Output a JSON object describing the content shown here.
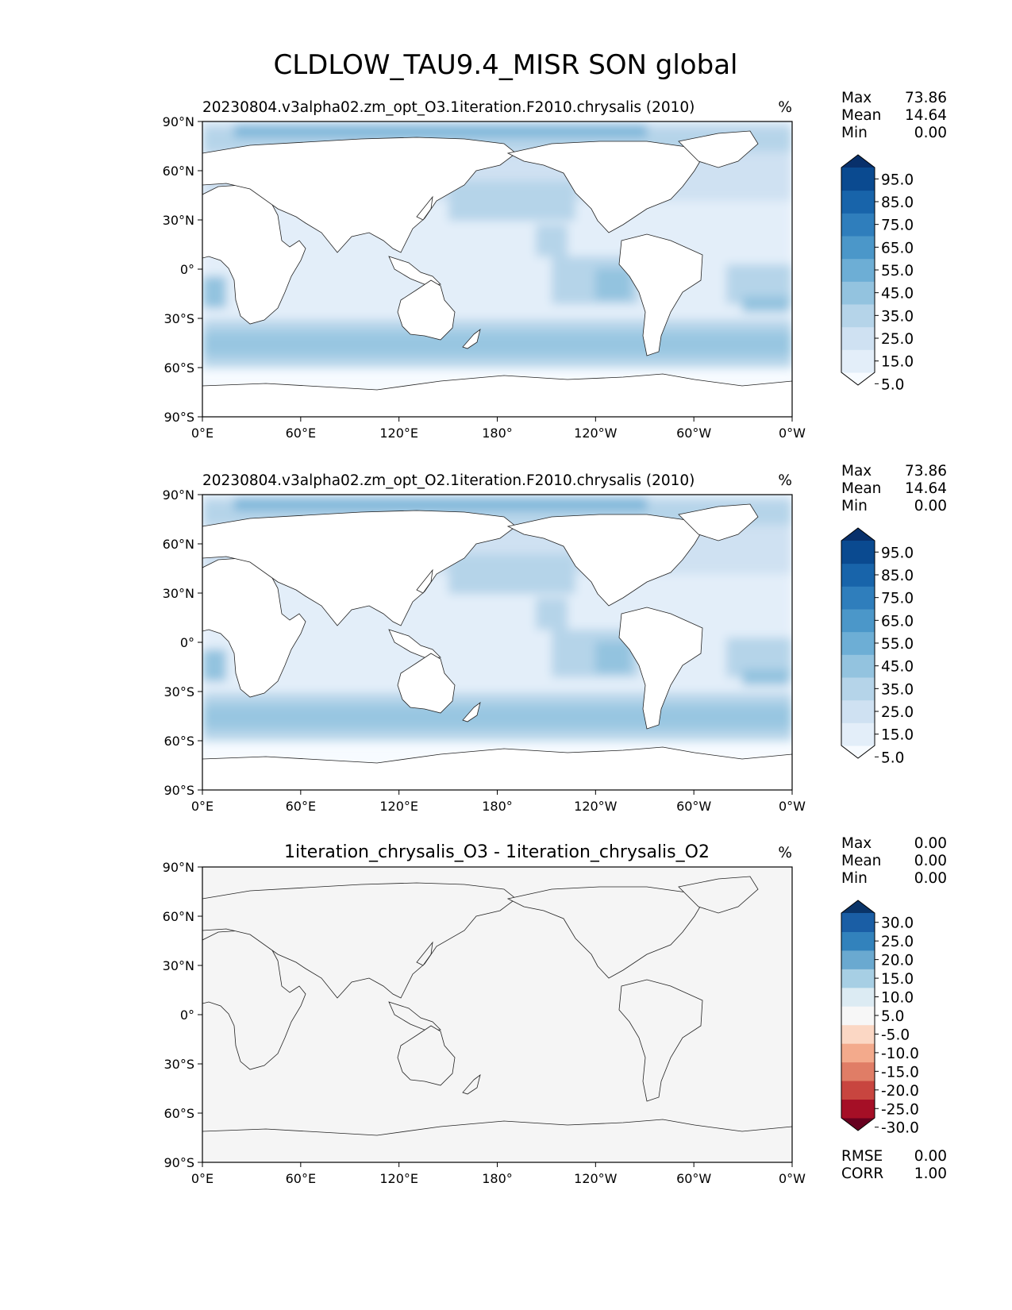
{
  "figure": {
    "title": "CLDLOW_TAU9.4_MISR SON global"
  },
  "x_ticks": [
    "0°E",
    "60°E",
    "120°E",
    "180°",
    "120°W",
    "60°W",
    "0°W"
  ],
  "y_ticks": [
    "90°N",
    "60°N",
    "30°N",
    "0°",
    "30°S",
    "60°S",
    "90°S"
  ],
  "panels": [
    {
      "title": "20230804.v3alpha02.zm_opt_O3.1iteration.F2010.chrysalis (2010)",
      "units": "%",
      "stats": {
        "max_label": "Max",
        "max": "73.86",
        "mean_label": "Mean",
        "mean": "14.64",
        "min_label": "Min",
        "min": "0.00"
      },
      "colorbar_labels": [
        "95.0",
        "85.0",
        "75.0",
        "65.0",
        "55.0",
        "45.0",
        "35.0",
        "25.0",
        "15.0",
        "5.0"
      ],
      "colors": [
        "#f7fbff",
        "#e3eef9",
        "#cfe1f2",
        "#b5d4e9",
        "#93c3df",
        "#6daed5",
        "#4b97c9",
        "#2f7ebc",
        "#1864aa",
        "#0a4a90",
        "#08306b"
      ]
    },
    {
      "title": "20230804.v3alpha02.zm_opt_O2.1iteration.F2010.chrysalis (2010)",
      "units": "%",
      "stats": {
        "max_label": "Max",
        "max": "73.86",
        "mean_label": "Mean",
        "mean": "14.64",
        "min_label": "Min",
        "min": "0.00"
      },
      "colorbar_labels": [
        "95.0",
        "85.0",
        "75.0",
        "65.0",
        "55.0",
        "45.0",
        "35.0",
        "25.0",
        "15.0",
        "5.0"
      ],
      "colors": [
        "#f7fbff",
        "#e3eef9",
        "#cfe1f2",
        "#b5d4e9",
        "#93c3df",
        "#6daed5",
        "#4b97c9",
        "#2f7ebc",
        "#1864aa",
        "#0a4a90",
        "#08306b"
      ]
    },
    {
      "title": "1iteration_chrysalis_O3 - 1iteration_chrysalis_O2",
      "units": "%",
      "stats": {
        "max_label": "Max",
        "max": "0.00",
        "mean_label": "Mean",
        "mean": "0.00",
        "min_label": "Min",
        "min": "0.00"
      },
      "colorbar_labels": [
        "30.0",
        "25.0",
        "20.0",
        "15.0",
        "10.0",
        "5.0",
        "-5.0",
        "-10.0",
        "-15.0",
        "-20.0",
        "-25.0",
        "-30.0"
      ],
      "colors": [
        "#67001f",
        "#a50f26",
        "#c8453f",
        "#e07d66",
        "#f3aa8c",
        "#fbd7c4",
        "#f7f7f7",
        "#dcebf3",
        "#a7cfe4",
        "#6aa9d0",
        "#3282bc",
        "#1a5ea5",
        "#0a3468"
      ],
      "extra_stats": {
        "rmse_label": "RMSE",
        "rmse": "0.00",
        "corr_label": "CORR",
        "corr": "1.00"
      }
    }
  ]
}
